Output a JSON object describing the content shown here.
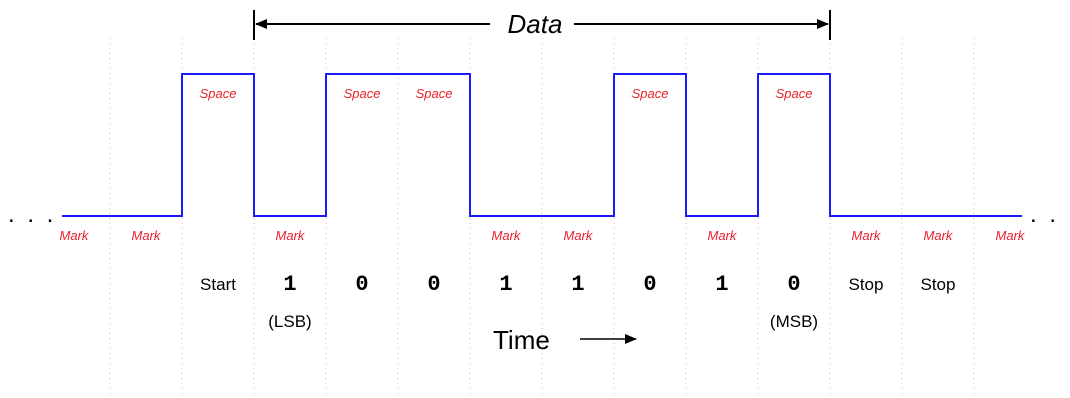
{
  "title": "Data",
  "time_label": "Time",
  "ellipsis": ". . .",
  "colors": {
    "waveform": "#1a1aff",
    "state_text": "#e8202a",
    "grid": "#b8b8b8",
    "text": "#000000"
  },
  "levels": [
    "Mark",
    "Mark",
    "Space",
    "Mark",
    "Space",
    "Space",
    "Mark",
    "Mark",
    "Space",
    "Mark",
    "Space",
    "Mark",
    "Mark",
    "Mark"
  ],
  "bits": [
    {
      "text": "Start",
      "kind": "role",
      "sub": ""
    },
    {
      "text": "1",
      "kind": "bit",
      "sub": "(LSB)"
    },
    {
      "text": "0",
      "kind": "bit",
      "sub": ""
    },
    {
      "text": "0",
      "kind": "bit",
      "sub": ""
    },
    {
      "text": "1",
      "kind": "bit",
      "sub": ""
    },
    {
      "text": "1",
      "kind": "bit",
      "sub": ""
    },
    {
      "text": "0",
      "kind": "bit",
      "sub": ""
    },
    {
      "text": "1",
      "kind": "bit",
      "sub": ""
    },
    {
      "text": "0",
      "kind": "bit",
      "sub": "(MSB)"
    },
    {
      "text": "Stop",
      "kind": "role",
      "sub": ""
    },
    {
      "text": "Stop",
      "kind": "role",
      "sub": ""
    }
  ]
}
